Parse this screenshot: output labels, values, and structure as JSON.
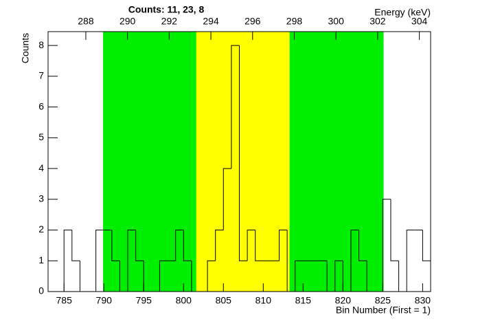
{
  "chart_data": {
    "type": "histogram",
    "title": "Counts:   11,   23,   8",
    "x_label": "Bin Number (First = 1)",
    "x2_label": "Energy (keV)",
    "y_label": "Counts",
    "bins": [
      783,
      784,
      785,
      786,
      787,
      788,
      789,
      790,
      791,
      792,
      793,
      794,
      795,
      796,
      797,
      798,
      799,
      800,
      801,
      802,
      803,
      804,
      805,
      806,
      807,
      808,
      809,
      810,
      811,
      812,
      813,
      814,
      815,
      816,
      817,
      818,
      819,
      820,
      821,
      822,
      823,
      824,
      825,
      826,
      827,
      828,
      829,
      830,
      831
    ],
    "values": [
      0,
      0,
      2,
      1,
      0,
      0,
      2,
      2,
      1,
      0,
      2,
      1,
      0,
      0,
      1,
      1,
      2,
      1,
      0,
      0,
      1,
      2,
      4,
      8,
      1,
      2,
      1,
      1,
      1,
      2,
      0,
      1,
      1,
      1,
      1,
      0,
      1,
      0,
      2,
      1,
      0,
      0,
      3,
      1,
      0,
      2,
      2,
      1
    ],
    "color": "#000000",
    "regions": [
      {
        "start": 789.9,
        "end": 801.6,
        "color": "#00ee00"
      },
      {
        "start": 801.6,
        "end": 813.3,
        "color": "#ffff00"
      },
      {
        "start": 813.3,
        "end": 825.1,
        "color": "#00ee00"
      }
    ],
    "xlim": [
      783,
      831
    ],
    "xticks": [
      785,
      790,
      795,
      800,
      805,
      810,
      815,
      820,
      825,
      830
    ],
    "x2lim": [
      286.19,
      304.54
    ],
    "x2ticks": [
      288,
      290,
      292,
      294,
      296,
      298,
      300,
      302,
      304
    ],
    "ylim": [
      0,
      8.45
    ],
    "yticks": [
      0,
      1,
      2,
      3,
      4,
      5,
      6,
      7,
      8
    ]
  }
}
